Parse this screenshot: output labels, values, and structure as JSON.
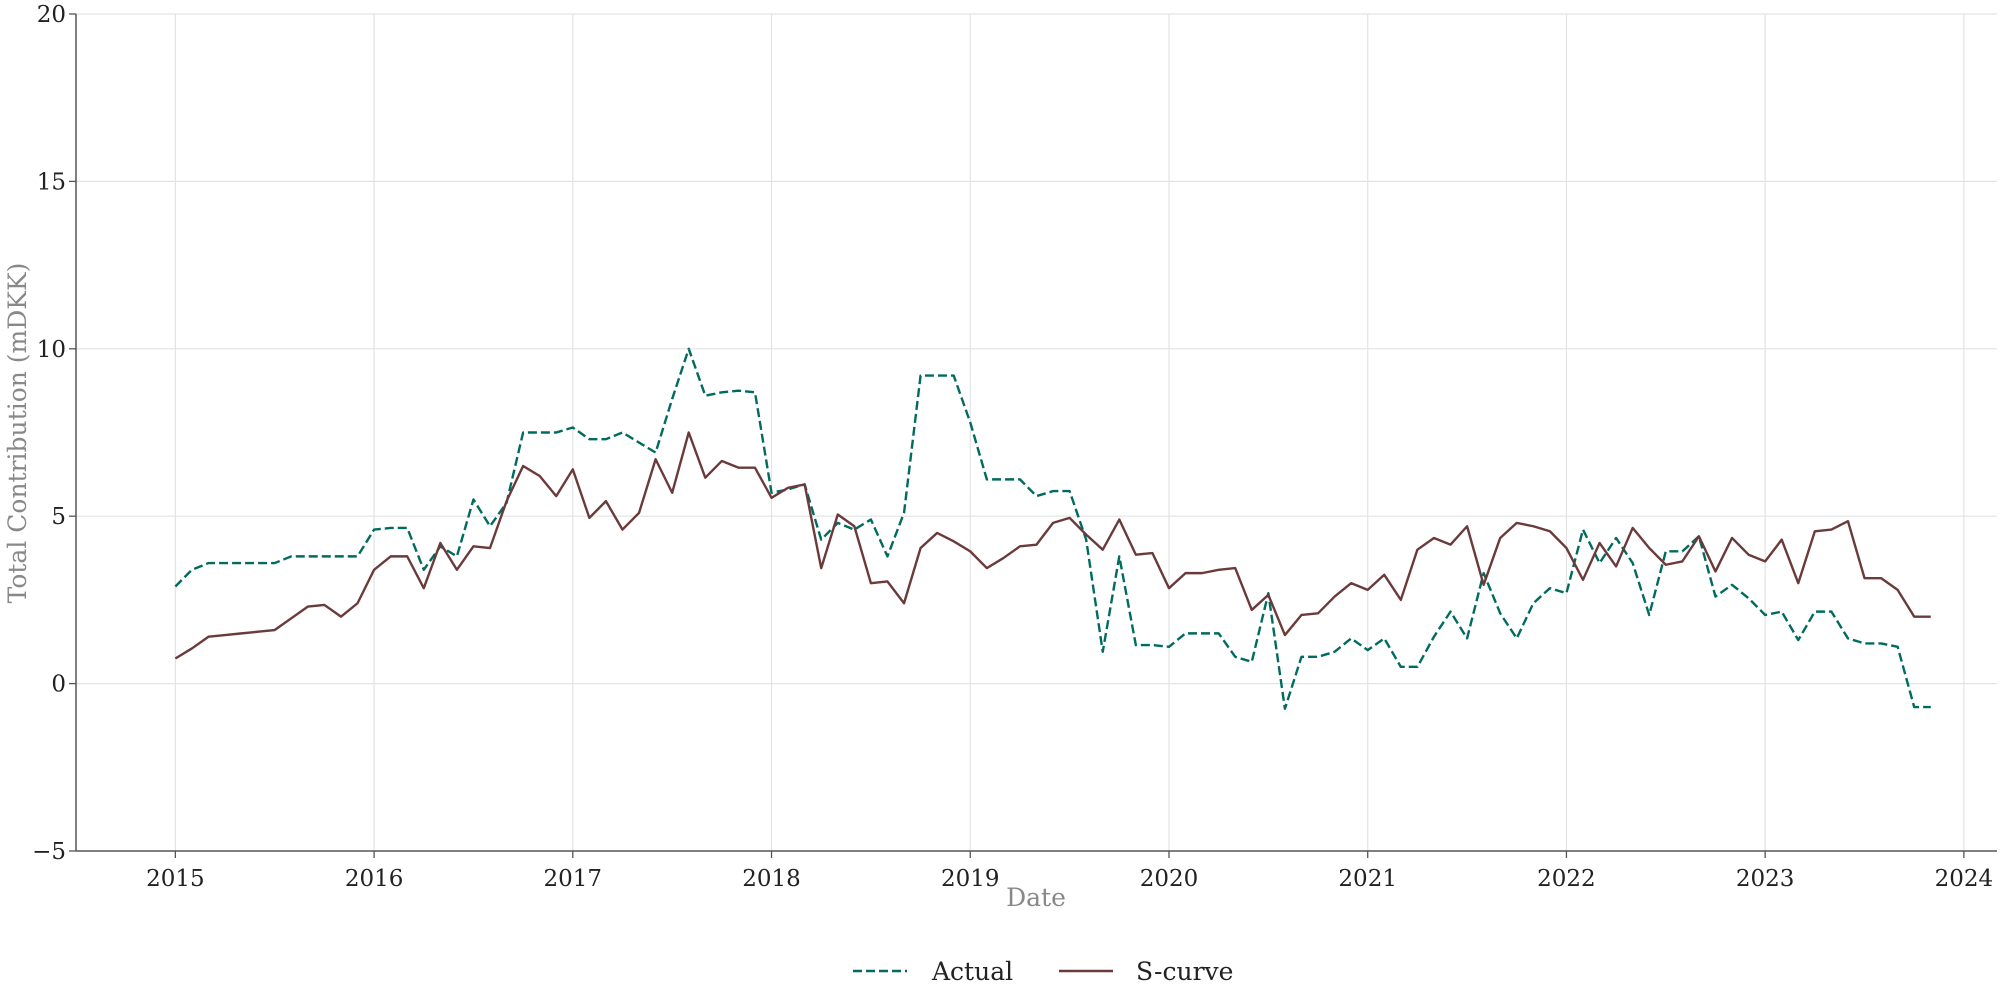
{
  "chart_data": {
    "type": "line",
    "title": "",
    "xlabel": "Date",
    "ylabel": "Total Contribution (mDKK)",
    "xlim": [
      "2014-07",
      "2024-03"
    ],
    "ylim": [
      -5,
      20
    ],
    "x_ticks": [
      "2015",
      "2016",
      "2017",
      "2018",
      "2019",
      "2020",
      "2021",
      "2022",
      "2023",
      "2024"
    ],
    "y_ticks": [
      -5,
      0,
      5,
      10,
      15,
      20
    ],
    "y_tick_labels": [
      "−5",
      "0",
      "5",
      "10",
      "15",
      "20"
    ],
    "grid": true,
    "legend_position": "bottom-center",
    "x": [
      "2015-01",
      "2015-02",
      "2015-03",
      "2015-04",
      "2015-05",
      "2015-06",
      "2015-07",
      "2015-08",
      "2015-09",
      "2015-10",
      "2015-11",
      "2015-12",
      "2016-01",
      "2016-02",
      "2016-03",
      "2016-04",
      "2016-05",
      "2016-06",
      "2016-07",
      "2016-08",
      "2016-09",
      "2016-10",
      "2016-11",
      "2016-12",
      "2017-01",
      "2017-02",
      "2017-03",
      "2017-04",
      "2017-05",
      "2017-06",
      "2017-07",
      "2017-08",
      "2017-09",
      "2017-10",
      "2017-11",
      "2017-12",
      "2018-01",
      "2018-02",
      "2018-03",
      "2018-04",
      "2018-05",
      "2018-06",
      "2018-07",
      "2018-08",
      "2018-09",
      "2018-10",
      "2018-11",
      "2018-12",
      "2019-01",
      "2019-02",
      "2019-03",
      "2019-04",
      "2019-05",
      "2019-06",
      "2019-07",
      "2019-08",
      "2019-09",
      "2019-10",
      "2019-11",
      "2019-12",
      "2020-01",
      "2020-02",
      "2020-03",
      "2020-04",
      "2020-05",
      "2020-06",
      "2020-07",
      "2020-08",
      "2020-09",
      "2020-10",
      "2020-11",
      "2020-12",
      "2021-01",
      "2021-02",
      "2021-03",
      "2021-04",
      "2021-05",
      "2021-06",
      "2021-07",
      "2021-08",
      "2021-09",
      "2021-10",
      "2021-11",
      "2021-12",
      "2022-01",
      "2022-02",
      "2022-03",
      "2022-04",
      "2022-05",
      "2022-06",
      "2022-07",
      "2022-08",
      "2022-09",
      "2022-10",
      "2022-11",
      "2022-12",
      "2023-01",
      "2023-02",
      "2023-03",
      "2023-04",
      "2023-05",
      "2023-06",
      "2023-07",
      "2023-08",
      "2023-09",
      "2023-10",
      "2023-11"
    ],
    "series": [
      {
        "name": "Actual",
        "color": "#006b5e",
        "style": "dashed",
        "values": [
          2.9,
          3.4,
          3.6,
          3.6,
          3.6,
          3.6,
          3.6,
          3.8,
          3.8,
          3.8,
          3.8,
          3.8,
          4.6,
          4.65,
          4.65,
          3.4,
          4.1,
          3.8,
          5.5,
          4.7,
          5.4,
          7.5,
          7.5,
          7.5,
          7.65,
          7.3,
          7.3,
          7.5,
          7.2,
          6.9,
          8.5,
          10.0,
          8.6,
          8.7,
          8.75,
          8.7,
          5.7,
          5.8,
          5.95,
          4.3,
          4.8,
          4.6,
          4.9,
          3.8,
          5.1,
          9.2,
          9.2,
          9.2,
          7.8,
          6.1,
          6.1,
          6.1,
          5.6,
          5.75,
          5.75,
          4.3,
          0.95,
          3.8,
          1.15,
          1.15,
          1.1,
          1.5,
          1.5,
          1.5,
          0.8,
          0.65,
          2.7,
          -0.75,
          0.8,
          0.8,
          0.95,
          1.35,
          1.0,
          1.35,
          0.5,
          0.5,
          1.4,
          2.15,
          1.35,
          3.3,
          2.1,
          1.35,
          2.4,
          2.85,
          2.7,
          4.6,
          3.6,
          4.35,
          3.6,
          2.05,
          3.95,
          3.95,
          4.4,
          2.6,
          2.95,
          2.55,
          2.05,
          2.15,
          1.3,
          2.15,
          2.15,
          1.35,
          1.2,
          1.2,
          1.1,
          -0.7,
          -0.7
        ]
      },
      {
        "name": "S-curve",
        "color": "#6b3a3a",
        "style": "solid",
        "values": [
          0.75,
          1.05,
          1.4,
          1.45,
          1.5,
          1.55,
          1.6,
          1.95,
          2.3,
          2.35,
          2.0,
          2.4,
          3.4,
          3.8,
          3.8,
          2.85,
          4.2,
          3.4,
          4.1,
          4.05,
          5.45,
          6.5,
          6.2,
          5.6,
          6.4,
          4.95,
          5.45,
          4.6,
          5.1,
          6.7,
          5.7,
          7.5,
          6.15,
          6.65,
          6.45,
          6.45,
          5.55,
          5.85,
          5.95,
          3.45,
          5.05,
          4.7,
          3.0,
          3.05,
          2.4,
          4.05,
          4.5,
          4.25,
          3.95,
          3.45,
          3.75,
          4.1,
          4.15,
          4.8,
          4.95,
          4.45,
          4.0,
          4.9,
          3.85,
          3.9,
          2.85,
          3.3,
          3.3,
          3.4,
          3.45,
          2.2,
          2.65,
          1.45,
          2.05,
          2.1,
          2.6,
          3.0,
          2.8,
          3.25,
          2.5,
          4.0,
          4.35,
          4.15,
          4.7,
          2.95,
          4.35,
          4.8,
          4.7,
          4.55,
          4.05,
          3.1,
          4.2,
          3.5,
          4.65,
          4.05,
          3.55,
          3.65,
          4.4,
          3.35,
          4.35,
          3.85,
          3.65,
          4.3,
          3.0,
          4.55,
          4.6,
          4.85,
          3.15,
          3.15,
          2.8,
          2.0,
          2.0
        ]
      }
    ]
  }
}
